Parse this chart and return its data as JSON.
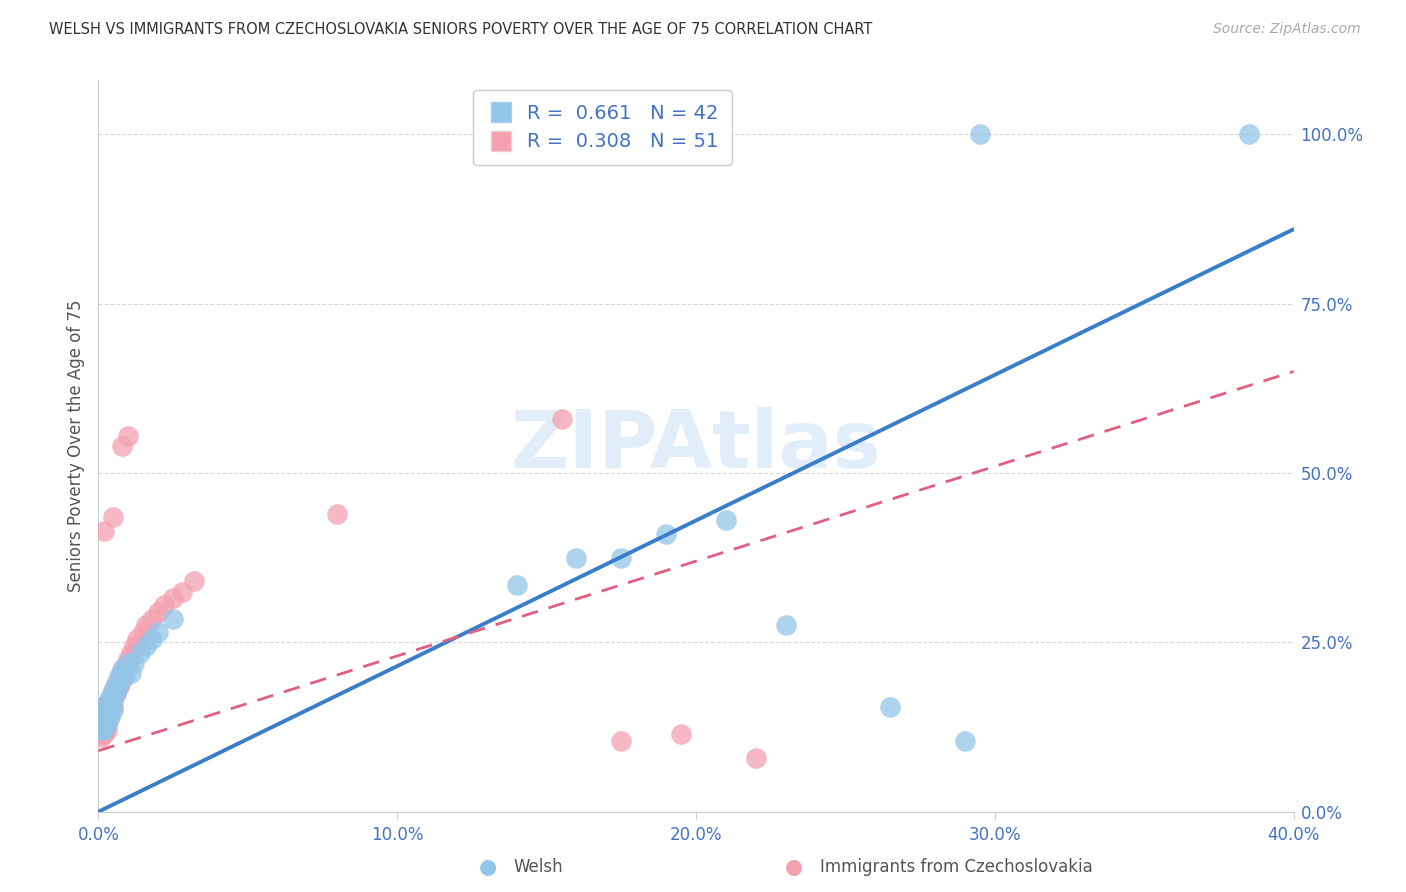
{
  "title": "WELSH VS IMMIGRANTS FROM CZECHOSLOVAKIA SENIORS POVERTY OVER THE AGE OF 75 CORRELATION CHART",
  "source": "Source: ZipAtlas.com",
  "ylabel": "Seniors Poverty Over the Age of 75",
  "legend_label_1": "Welsh",
  "legend_label_2": "Immigrants from Czechoslovakia",
  "R1": 0.661,
  "N1": 42,
  "R2": 0.308,
  "N2": 51,
  "color1": "#92c5e8",
  "color2": "#f4a0b0",
  "line_color1": "#3a7dc9",
  "line_color2": "#e06080",
  "watermark": "ZIPAtlas",
  "watermark_color": "#c5dff5",
  "bg_color": "#ffffff",
  "grid_color": "#d8d8d8",
  "axis_label_color": "#4472c4",
  "title_color": "#333333",
  "source_color": "#aaaaaa",
  "ylabel_color": "#555555",
  "xlim": [
    0.0,
    0.4
  ],
  "ylim": [
    0.0,
    1.08
  ],
  "xtick_vals": [
    0.0,
    0.1,
    0.2,
    0.3,
    0.4
  ],
  "ytick_vals": [
    0.0,
    0.25,
    0.5,
    0.75,
    1.0
  ],
  "welsh_x": [
    0.0005,
    0.001,
    0.001,
    0.0015,
    0.002,
    0.002,
    0.002,
    0.003,
    0.003,
    0.003,
    0.003,
    0.004,
    0.004,
    0.004,
    0.004,
    0.005,
    0.005,
    0.005,
    0.006,
    0.006,
    0.007,
    0.007,
    0.008,
    0.009,
    0.01,
    0.011,
    0.012,
    0.014,
    0.016,
    0.018,
    0.02,
    0.025,
    0.14,
    0.16,
    0.175,
    0.19,
    0.21,
    0.23,
    0.265,
    0.29,
    0.295,
    0.385
  ],
  "welsh_y": [
    0.14,
    0.13,
    0.12,
    0.155,
    0.14,
    0.13,
    0.12,
    0.16,
    0.15,
    0.14,
    0.13,
    0.17,
    0.16,
    0.15,
    0.14,
    0.18,
    0.165,
    0.15,
    0.19,
    0.175,
    0.2,
    0.185,
    0.21,
    0.2,
    0.22,
    0.205,
    0.22,
    0.235,
    0.245,
    0.255,
    0.265,
    0.285,
    0.335,
    0.375,
    0.375,
    0.41,
    0.43,
    0.275,
    0.155,
    0.105,
    1.0,
    1.0
  ],
  "czech_x": [
    0.0005,
    0.0005,
    0.001,
    0.001,
    0.001,
    0.001,
    0.0015,
    0.002,
    0.002,
    0.002,
    0.002,
    0.003,
    0.003,
    0.003,
    0.003,
    0.003,
    0.004,
    0.004,
    0.004,
    0.005,
    0.005,
    0.005,
    0.006,
    0.006,
    0.007,
    0.007,
    0.008,
    0.008,
    0.009,
    0.01,
    0.01,
    0.011,
    0.012,
    0.013,
    0.015,
    0.016,
    0.018,
    0.02,
    0.022,
    0.025,
    0.028,
    0.032,
    0.002,
    0.005,
    0.008,
    0.01,
    0.08,
    0.155,
    0.175,
    0.195,
    0.22
  ],
  "czech_y": [
    0.125,
    0.115,
    0.14,
    0.13,
    0.12,
    0.11,
    0.155,
    0.14,
    0.13,
    0.12,
    0.115,
    0.155,
    0.15,
    0.14,
    0.13,
    0.12,
    0.165,
    0.155,
    0.145,
    0.175,
    0.165,
    0.155,
    0.185,
    0.175,
    0.195,
    0.185,
    0.205,
    0.195,
    0.215,
    0.225,
    0.215,
    0.235,
    0.245,
    0.255,
    0.265,
    0.275,
    0.285,
    0.295,
    0.305,
    0.315,
    0.325,
    0.34,
    0.415,
    0.435,
    0.54,
    0.555,
    0.44,
    0.58,
    0.105,
    0.115,
    0.08
  ],
  "blue_line_x0": 0.0,
  "blue_line_y0": 0.0,
  "blue_line_x1": 0.4,
  "blue_line_y1": 0.86,
  "pink_line_x0": 0.0,
  "pink_line_y0": 0.09,
  "pink_line_x1": 0.4,
  "pink_line_y1": 0.65
}
